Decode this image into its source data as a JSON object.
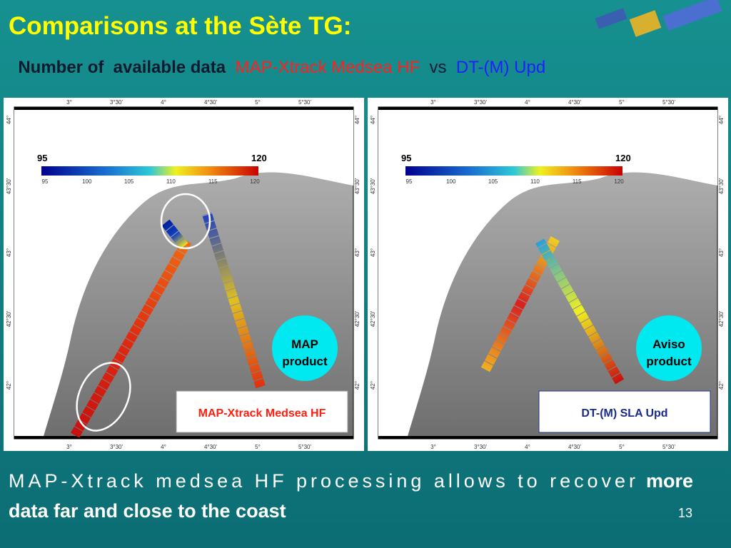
{
  "header": {
    "title": "Comparisons at the Sète TG:",
    "subtitle": {
      "lead": "Number of  available data",
      "product_a": "MAP-Xtrack Medsea HF",
      "vs": "vs",
      "product_b": "DT-(M) Upd"
    }
  },
  "map_axes": {
    "lon": [
      "3°",
      "3°30'",
      "4°",
      "4°30'",
      "5°",
      "5°30'"
    ],
    "lat": [
      "44°",
      "43°30'",
      "43°",
      "42°30'",
      "42°"
    ]
  },
  "panels": [
    {
      "colorbar": {
        "min": 95,
        "max": 120,
        "ticks": [
          95,
          100,
          105,
          110,
          115,
          120
        ]
      },
      "badge": [
        "MAP",
        "product"
      ],
      "label": "MAP-Xtrack Medsea HF"
    },
    {
      "colorbar": {
        "min": 95,
        "max": 120,
        "ticks": [
          95,
          100,
          105,
          110,
          115,
          120
        ]
      },
      "badge": [
        "Aviso",
        "product"
      ],
      "label": "DT-(M) SLA Upd"
    }
  ],
  "body": {
    "text": "MAP-Xtrack medsea HF processing allows to recover",
    "emphasis": [
      "more",
      "data far and close to the coast"
    ]
  },
  "page_number": 13
}
